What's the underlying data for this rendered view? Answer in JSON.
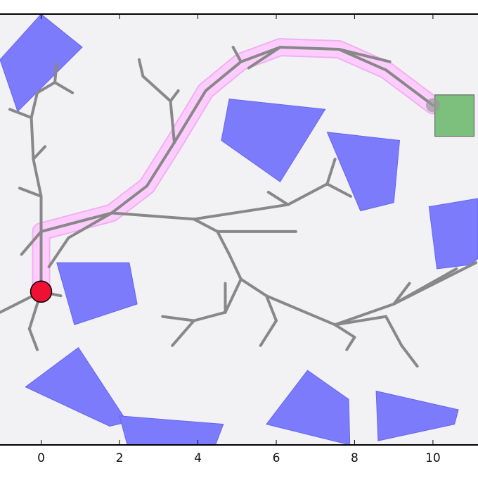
{
  "chart_data": {
    "type": "scatter",
    "title": "",
    "xlabel": "",
    "ylabel": "",
    "xlim": [
      -1.05,
      11.15
    ],
    "ylim": [
      -8.2,
      2.2
    ],
    "x_ticks": [
      {
        "value": 0,
        "label": "0"
      },
      {
        "value": 2,
        "label": "2"
      },
      {
        "value": 4,
        "label": "4"
      },
      {
        "value": 6,
        "label": "6"
      },
      {
        "value": 8,
        "label": "8"
      },
      {
        "value": 10,
        "label": "10"
      }
    ],
    "grid": false,
    "colors": {
      "background": "#f2f2f5",
      "obstacle": "#7b7bfb",
      "obstacle_edge": "#6565ef",
      "tree": "#888888",
      "path_highlight": "#ffccff",
      "path_highlight_edge": "#f0b0f0",
      "start": "#ee1133",
      "goal": "#7dbf7d",
      "goal_edge": "#555555"
    },
    "start": {
      "x": 0,
      "y": -4.5
    },
    "goal": {
      "x": 10,
      "y": 0
    },
    "goal_region": {
      "x": [
        10.05,
        11.05
      ],
      "y": [
        -0.75,
        0.25
      ]
    },
    "path": [
      [
        0,
        -4.5
      ],
      [
        0,
        -3.05
      ],
      [
        1.8,
        -2.6
      ],
      [
        2.7,
        -1.95
      ],
      [
        3.4,
        -0.9
      ],
      [
        4.2,
        0.35
      ],
      [
        5.1,
        1.05
      ],
      [
        6.1,
        1.4
      ],
      [
        7.6,
        1.35
      ],
      [
        8.8,
        0.85
      ],
      [
        10,
        0
      ]
    ],
    "obstacles": [
      {
        "points": [
          [
            -1.05,
            1.1
          ],
          [
            0,
            2.2
          ],
          [
            1.05,
            1.4
          ],
          [
            -0.6,
            -0.15
          ]
        ]
      },
      {
        "points": [
          [
            4.8,
            0.15
          ],
          [
            7.25,
            -0.1
          ],
          [
            6.1,
            -1.85
          ],
          [
            4.6,
            -0.85
          ]
        ]
      },
      {
        "points": [
          [
            7.3,
            -0.65
          ],
          [
            9.15,
            -0.85
          ],
          [
            9.0,
            -2.35
          ],
          [
            8.15,
            -2.55
          ]
        ]
      },
      {
        "points": [
          [
            9.9,
            -2.45
          ],
          [
            11.15,
            -2.25
          ],
          [
            11.15,
            -3.7
          ],
          [
            10.95,
            -3.85
          ],
          [
            10.1,
            -3.95
          ]
        ]
      },
      {
        "points": [
          [
            0.4,
            -3.8
          ],
          [
            2.25,
            -3.8
          ],
          [
            2.45,
            -4.8
          ],
          [
            0.85,
            -5.3
          ]
        ]
      },
      {
        "points": [
          [
            -0.4,
            -6.8
          ],
          [
            0.95,
            -5.85
          ],
          [
            2.2,
            -7.65
          ],
          [
            1.75,
            -7.75
          ]
        ]
      },
      {
        "points": [
          [
            2.0,
            -7.5
          ],
          [
            4.65,
            -7.7
          ],
          [
            4.45,
            -8.2
          ],
          [
            2.2,
            -8.2
          ]
        ]
      },
      {
        "points": [
          [
            5.75,
            -7.7
          ],
          [
            6.8,
            -6.4
          ],
          [
            7.85,
            -7.1
          ],
          [
            7.88,
            -8.2
          ]
        ]
      },
      {
        "points": [
          [
            8.55,
            -6.9
          ],
          [
            10.65,
            -7.35
          ],
          [
            10.55,
            -7.7
          ],
          [
            8.6,
            -8.1
          ]
        ]
      }
    ],
    "tree_edges": [
      [
        [
          0,
          -4.5
        ],
        [
          0,
          -3.05
        ]
      ],
      [
        [
          0,
          -3.05
        ],
        [
          0,
          -2.2
        ]
      ],
      [
        [
          0,
          -2.2
        ],
        [
          -0.2,
          -1.3
        ]
      ],
      [
        [
          -0.2,
          -1.3
        ],
        [
          -0.25,
          -0.3
        ]
      ],
      [
        [
          -0.25,
          -0.3
        ],
        [
          -0.1,
          0.3
        ]
      ],
      [
        [
          -0.25,
          -0.3
        ],
        [
          -0.8,
          -0.1
        ]
      ],
      [
        [
          -0.1,
          0.3
        ],
        [
          0.35,
          0.55
        ]
      ],
      [
        [
          0.35,
          0.55
        ],
        [
          0.4,
          1.0
        ]
      ],
      [
        [
          0.35,
          0.55
        ],
        [
          0.8,
          0.3
        ]
      ],
      [
        [
          0,
          -2.2
        ],
        [
          -0.55,
          -2.0
        ]
      ],
      [
        [
          -0.2,
          -1.3
        ],
        [
          0.1,
          -1.0
        ]
      ],
      [
        [
          0,
          -3.05
        ],
        [
          -0.5,
          -3.6
        ]
      ],
      [
        [
          0,
          -4.5
        ],
        [
          -1.05,
          -5.0
        ]
      ],
      [
        [
          0,
          -4.5
        ],
        [
          -0.3,
          -5.4
        ]
      ],
      [
        [
          -0.3,
          -5.4
        ],
        [
          -0.1,
          -5.9
        ]
      ],
      [
        [
          0,
          -4.5
        ],
        [
          0.5,
          -4.6
        ]
      ],
      [
        [
          0,
          -3.05
        ],
        [
          1.8,
          -2.6
        ]
      ],
      [
        [
          1.8,
          -2.6
        ],
        [
          2.7,
          -1.95
        ]
      ],
      [
        [
          2.7,
          -1.95
        ],
        [
          3.4,
          -0.9
        ]
      ],
      [
        [
          3.4,
          -0.9
        ],
        [
          4.2,
          0.35
        ]
      ],
      [
        [
          4.2,
          0.35
        ],
        [
          5.1,
          1.05
        ]
      ],
      [
        [
          5.1,
          1.05
        ],
        [
          6.1,
          1.4
        ]
      ],
      [
        [
          6.1,
          1.4
        ],
        [
          7.6,
          1.35
        ]
      ],
      [
        [
          7.6,
          1.35
        ],
        [
          8.8,
          0.85
        ]
      ],
      [
        [
          8.8,
          0.85
        ],
        [
          10,
          0
        ]
      ],
      [
        [
          5.1,
          1.05
        ],
        [
          4.9,
          1.4
        ]
      ],
      [
        [
          6.1,
          1.4
        ],
        [
          5.3,
          0.9
        ]
      ],
      [
        [
          7.6,
          1.35
        ],
        [
          8.9,
          1.05
        ]
      ],
      [
        [
          3.4,
          -0.9
        ],
        [
          3.3,
          0.1
        ]
      ],
      [
        [
          3.3,
          0.1
        ],
        [
          2.6,
          0.7
        ]
      ],
      [
        [
          3.3,
          0.1
        ],
        [
          3.5,
          0.35
        ]
      ],
      [
        [
          2.6,
          0.7
        ],
        [
          2.5,
          1.1
        ]
      ],
      [
        [
          1.8,
          -2.6
        ],
        [
          3.9,
          -2.75
        ]
      ],
      [
        [
          3.9,
          -2.75
        ],
        [
          6.3,
          -2.4
        ]
      ],
      [
        [
          6.3,
          -2.4
        ],
        [
          7.3,
          -1.9
        ]
      ],
      [
        [
          7.3,
          -1.9
        ],
        [
          7.5,
          -1.3
        ]
      ],
      [
        [
          7.3,
          -1.9
        ],
        [
          7.9,
          -2.2
        ]
      ],
      [
        [
          6.3,
          -2.4
        ],
        [
          5.8,
          -2.1
        ]
      ],
      [
        [
          3.9,
          -2.75
        ],
        [
          4.5,
          -3.05
        ]
      ],
      [
        [
          4.5,
          -3.05
        ],
        [
          6.5,
          -3.05
        ]
      ],
      [
        [
          4.5,
          -3.05
        ],
        [
          4.8,
          -3.6
        ]
      ],
      [
        [
          4.8,
          -3.6
        ],
        [
          5.1,
          -4.2
        ]
      ],
      [
        [
          5.1,
          -4.2
        ],
        [
          4.7,
          -5.0
        ]
      ],
      [
        [
          4.7,
          -5.0
        ],
        [
          3.9,
          -5.2
        ]
      ],
      [
        [
          4.7,
          -5.0
        ],
        [
          4.7,
          -4.3
        ]
      ],
      [
        [
          3.9,
          -5.2
        ],
        [
          3.35,
          -5.8
        ]
      ],
      [
        [
          3.9,
          -5.2
        ],
        [
          3.1,
          -5.1
        ]
      ],
      [
        [
          5.1,
          -4.2
        ],
        [
          5.75,
          -4.6
        ]
      ],
      [
        [
          5.75,
          -4.6
        ],
        [
          6.0,
          -5.2
        ]
      ],
      [
        [
          6.0,
          -5.2
        ],
        [
          5.6,
          -5.8
        ]
      ],
      [
        [
          5.75,
          -4.6
        ],
        [
          7.5,
          -5.3
        ]
      ],
      [
        [
          7.5,
          -5.3
        ],
        [
          9.0,
          -4.8
        ]
      ],
      [
        [
          9.0,
          -4.8
        ],
        [
          10.6,
          -3.95
        ]
      ],
      [
        [
          9.0,
          -4.8
        ],
        [
          11.1,
          -3.8
        ]
      ],
      [
        [
          7.5,
          -5.3
        ],
        [
          8.8,
          -5.1
        ]
      ],
      [
        [
          8.8,
          -5.1
        ],
        [
          9.2,
          -5.8
        ]
      ],
      [
        [
          9.2,
          -5.8
        ],
        [
          9.6,
          -6.3
        ]
      ],
      [
        [
          7.5,
          -5.3
        ],
        [
          8.0,
          -5.6
        ]
      ],
      [
        [
          8.0,
          -5.6
        ],
        [
          7.8,
          -5.9
        ]
      ],
      [
        [
          9.0,
          -4.8
        ],
        [
          9.4,
          -4.3
        ]
      ],
      [
        [
          1.8,
          -2.6
        ],
        [
          0.7,
          -3.2
        ]
      ],
      [
        [
          0.7,
          -3.2
        ],
        [
          0.2,
          -3.9
        ]
      ]
    ]
  }
}
